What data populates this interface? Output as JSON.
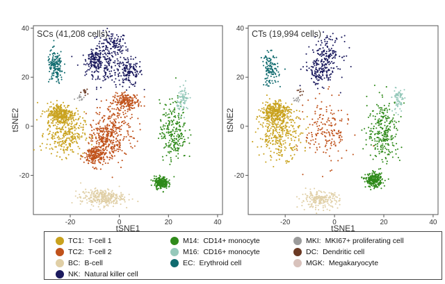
{
  "chart_data": [
    {
      "type": "scatter",
      "title": "SCs (41,208 cells)",
      "xlabel": "tSNE1",
      "ylabel": "tSNE2",
      "xlim": [
        -35,
        42
      ],
      "ylim": [
        -36,
        41
      ],
      "xticks": [
        -20,
        0,
        20,
        40
      ],
      "yticks": [
        -20,
        0,
        20,
        40
      ],
      "grid": false,
      "series": [
        {
          "cluster": "NK",
          "color": "#1b1a5e",
          "points": [
            [
              -3,
              33,
              5.5,
              5
            ],
            [
              -5,
              24,
              7.5,
              7
            ],
            [
              4,
              22,
              5,
              5
            ],
            [
              -10,
              27,
              3,
              3.5
            ]
          ],
          "density": 540
        },
        {
          "cluster": "TC2",
          "color": "#c0521b",
          "points": [
            [
              -2,
              -2,
              8,
              12
            ],
            [
              -6,
              -5,
              5,
              7
            ],
            [
              3,
              10,
              5,
              3
            ],
            [
              -10,
              -12,
              4,
              4
            ]
          ],
          "density": 820
        },
        {
          "cluster": "TC1",
          "color": "#c9a21e",
          "points": [
            [
              -22,
              -3,
              7,
              8
            ],
            [
              -24,
              5,
              5,
              4
            ]
          ],
          "density": 600
        },
        {
          "cluster": "BC",
          "color": "#e0cfa6",
          "points": [
            [
              -7,
              -29,
              8,
              3
            ]
          ],
          "density": 300
        },
        {
          "cluster": "M14",
          "color": "#2f8a1a",
          "points": [
            [
              22,
              -2,
              5,
              11
            ],
            [
              17,
              -23,
              2.5,
              2.2
            ]
          ],
          "density": 480
        },
        {
          "cluster": "M16",
          "color": "#96c9bb",
          "points": [
            [
              26,
              11,
              2.2,
              5
            ]
          ],
          "density": 80
        },
        {
          "cluster": "EC",
          "color": "#0f6a6e",
          "points": [
            [
              -26,
              24,
              3,
              6
            ]
          ],
          "density": 150
        },
        {
          "cluster": "DC",
          "color": "#6b3a24",
          "points": [
            [
              -14,
              14,
              1.2,
              1.2
            ]
          ],
          "density": 12
        },
        {
          "cluster": "MKI",
          "color": "#9b9b9b",
          "points": [
            [
              -16,
              12,
              1.5,
              1.5
            ]
          ],
          "density": 15
        }
      ]
    },
    {
      "type": "scatter",
      "title": "CTs (19,994 cells)",
      "xlabel": "tSNE1",
      "ylabel": "tSNE2",
      "xlim": [
        -35,
        42
      ],
      "ylim": [
        -36,
        41
      ],
      "xticks": [
        -20,
        0,
        20,
        40
      ],
      "yticks": [
        -20,
        0,
        20,
        40
      ],
      "grid": false,
      "series": [
        {
          "cluster": "NK",
          "color": "#1b1a5e",
          "points": [
            [
              -3,
              30,
              5.5,
              6
            ],
            [
              -6,
              22,
              6,
              5
            ]
          ],
          "density": 280
        },
        {
          "cluster": "TC2",
          "color": "#c0521b",
          "points": [
            [
              -3,
              -2,
              8,
              12
            ]
          ],
          "density": 180
        },
        {
          "cluster": "TC1",
          "color": "#c9a21e",
          "points": [
            [
              -22,
              -3,
              8,
              9
            ],
            [
              -24,
              6,
              5,
              4
            ]
          ],
          "density": 650
        },
        {
          "cluster": "BC",
          "color": "#e0cfa6",
          "points": [
            [
              -6,
              -30,
              7,
              3
            ]
          ],
          "density": 200
        },
        {
          "cluster": "M14",
          "color": "#2f8a1a",
          "points": [
            [
              20,
              -2,
              6,
              12
            ],
            [
              16,
              -22,
              3,
              2.5
            ]
          ],
          "density": 520
        },
        {
          "cluster": "M16",
          "color": "#96c9bb",
          "points": [
            [
              26,
              11,
              2.2,
              5
            ]
          ],
          "density": 70
        },
        {
          "cluster": "EC",
          "color": "#0f6a6e",
          "points": [
            [
              -26,
              23,
              3,
              6
            ]
          ],
          "density": 120
        },
        {
          "cluster": "DC",
          "color": "#6b3a24",
          "points": [
            [
              -14,
              14,
              1.2,
              1.2
            ]
          ],
          "density": 8
        },
        {
          "cluster": "MKI",
          "color": "#9b9b9b",
          "points": [
            [
              -15,
              11,
              1.5,
              1.5
            ]
          ],
          "density": 10
        }
      ]
    }
  ],
  "legend": {
    "items": [
      {
        "code": "TC1:",
        "label": "T-cell 1",
        "color": "#c9a21e"
      },
      {
        "code": "TC2:",
        "label": "T-cell 2",
        "color": "#c0521b"
      },
      {
        "code": "BC:",
        "label": "B-cell",
        "color": "#e0cfa6"
      },
      {
        "code": "NK:",
        "label": "Natural killer cell",
        "color": "#1b1a5e"
      },
      {
        "code": "M14:",
        "label": "CD14+ monocyte",
        "color": "#2f8a1a"
      },
      {
        "code": "M16:",
        "label": "CD16+ monocyte",
        "color": "#96c9bb"
      },
      {
        "code": "EC:",
        "label": "Erythroid cell",
        "color": "#0f6a6e"
      },
      {
        "code": "MKI:",
        "label": "MKI67+ proliferating cell",
        "color": "#9b9b9b"
      },
      {
        "code": "DC:",
        "label": "Dendritic cell",
        "color": "#6b3a24"
      },
      {
        "code": "MGK:",
        "label": "Megakaryocyte",
        "color": "#d8c2bc"
      }
    ]
  }
}
